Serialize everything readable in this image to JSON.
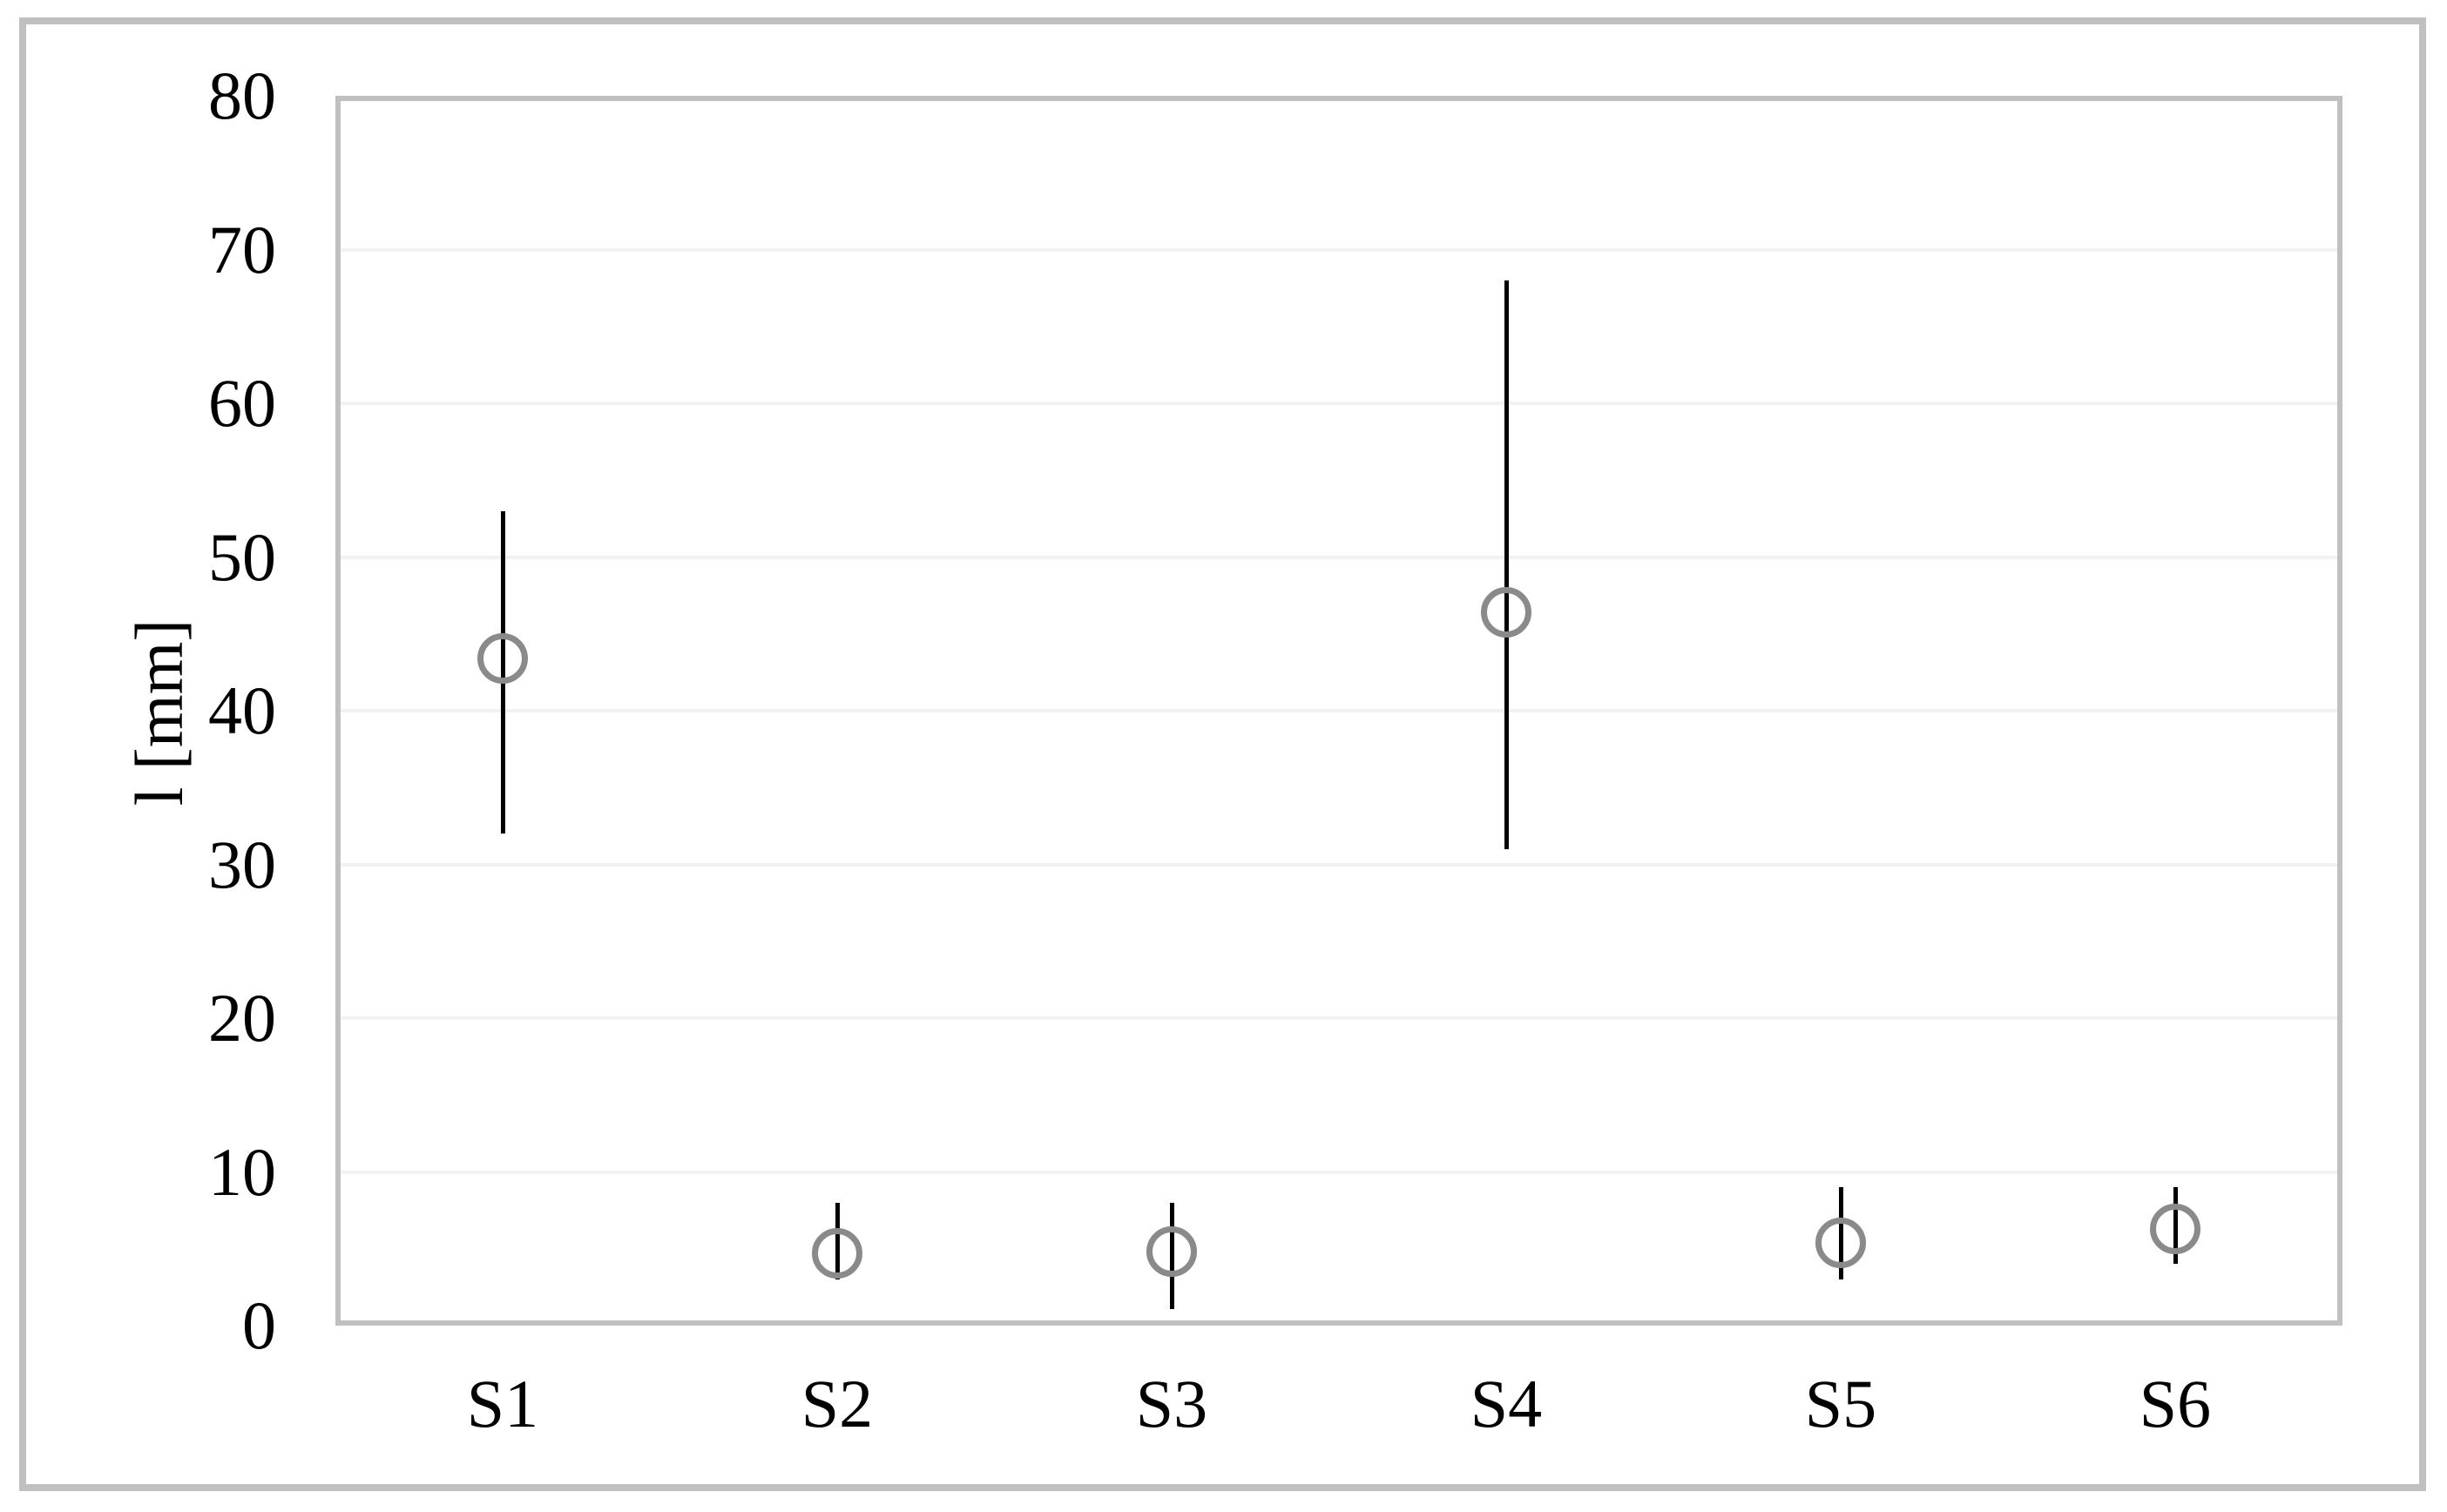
{
  "chart_data": {
    "type": "scatter",
    "title": "",
    "xlabel": "",
    "ylabel": "l [mm]",
    "categories": [
      "S1",
      "S2",
      "S3",
      "S4",
      "S5",
      "S6"
    ],
    "y_ticks": [
      0,
      10,
      20,
      30,
      40,
      50,
      60,
      70,
      80
    ],
    "ylim": [
      0,
      80
    ],
    "grid": "horizontal-light",
    "legend": "none",
    "series": [
      {
        "name": "l",
        "marker": "open-circle",
        "points": [
          {
            "category": "S1",
            "mean": 43.4,
            "low": 32.0,
            "high": 53.0
          },
          {
            "category": "S2",
            "mean": 4.7,
            "low": 3.0,
            "high": 8.0
          },
          {
            "category": "S3",
            "mean": 4.8,
            "low": 1.1,
            "high": 8.0
          },
          {
            "category": "S4",
            "mean": 46.4,
            "low": 31.0,
            "high": 68.0
          },
          {
            "category": "S5",
            "mean": 5.4,
            "low": 3.0,
            "high": 9.0
          },
          {
            "category": "S6",
            "mean": 6.3,
            "low": 4.0,
            "high": 9.0
          }
        ]
      }
    ],
    "colors": {
      "marker": "#8a8a8a",
      "error_bar": "#000000",
      "gridline": "#f2f2f2",
      "plot_border": "#c0c0c0",
      "figure_border": "#c0c0c0",
      "text": "#000000",
      "background": "#ffffff"
    }
  }
}
